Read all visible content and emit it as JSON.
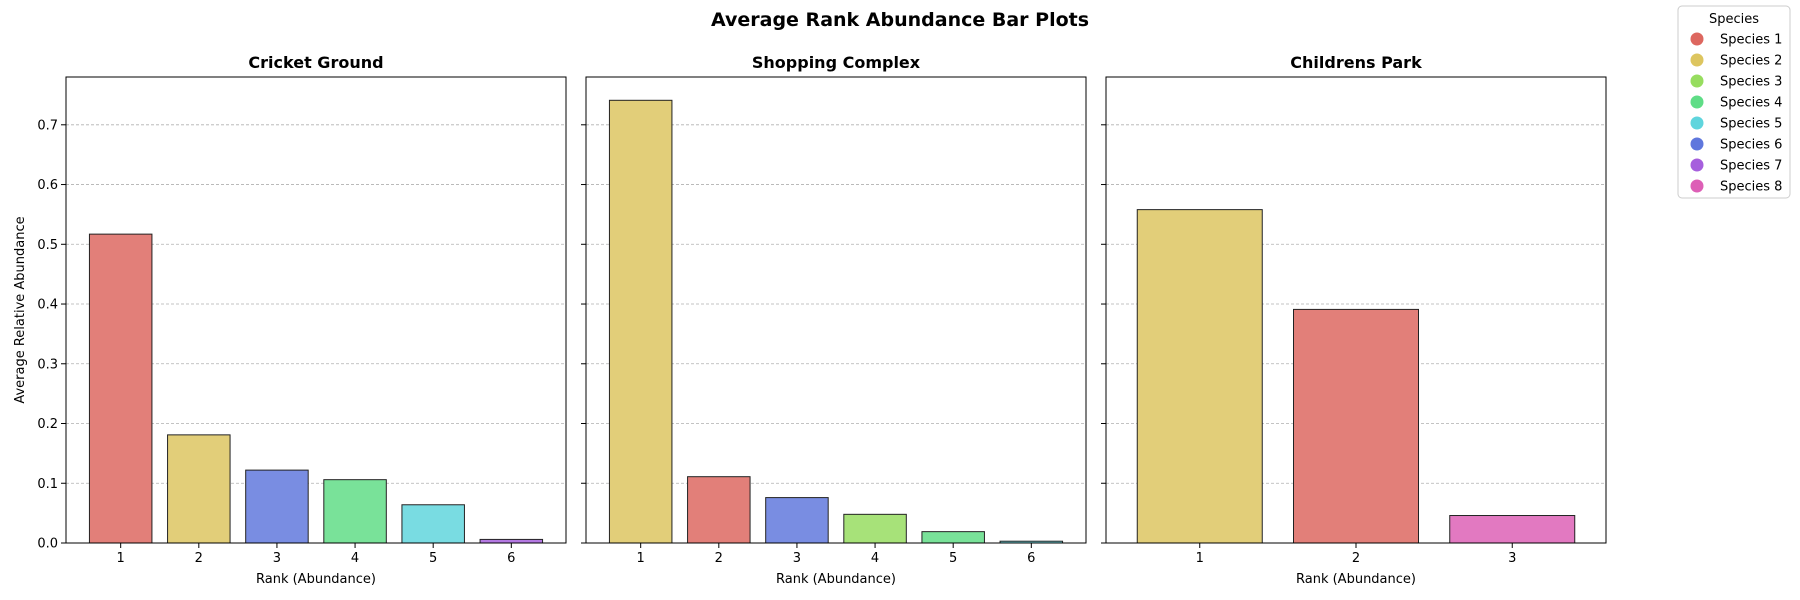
{
  "figure_title": "Average Rank Abundance Bar Plots",
  "legend": {
    "title": "Species",
    "placement": "upper-right-outside",
    "entries": [
      {
        "label": "Species 1",
        "color": "#db5f57"
      },
      {
        "label": "Species 2",
        "color": "#dbc257"
      },
      {
        "label": "Species 3",
        "color": "#91db57"
      },
      {
        "label": "Species 4",
        "color": "#57db80"
      },
      {
        "label": "Species 5",
        "color": "#57d3db"
      },
      {
        "label": "Species 6",
        "color": "#5770db"
      },
      {
        "label": "Species 7",
        "color": "#a157db"
      },
      {
        "label": "Species 8",
        "color": "#db57b2"
      }
    ]
  },
  "chart_data": [
    {
      "type": "bar",
      "title": "Cricket Ground",
      "xlabel": "Rank (Abundance)",
      "ylabel": "Average Relative Abundance",
      "categories": [
        "1",
        "2",
        "3",
        "4",
        "5",
        "6"
      ],
      "values": [
        0.517,
        0.181,
        0.122,
        0.106,
        0.064,
        0.006
      ],
      "species": [
        "Species 1",
        "Species 2",
        "Species 6",
        "Species 4",
        "Species 5",
        "Species 7"
      ],
      "ylim": [
        0,
        0.78
      ],
      "yticks": [
        "0.0",
        "0.1",
        "0.2",
        "0.3",
        "0.4",
        "0.5",
        "0.6",
        "0.7"
      ],
      "grid": "y-dashed"
    },
    {
      "type": "bar",
      "title": "Shopping Complex",
      "xlabel": "Rank (Abundance)",
      "ylabel": "",
      "categories": [
        "1",
        "2",
        "3",
        "4",
        "5",
        "6"
      ],
      "values": [
        0.741,
        0.111,
        0.076,
        0.048,
        0.019,
        0.003
      ],
      "species": [
        "Species 2",
        "Species 1",
        "Species 6",
        "Species 3",
        "Species 4",
        "Species 5"
      ],
      "ylim": [
        0,
        0.78
      ],
      "yticks": [],
      "grid": "y-dashed"
    },
    {
      "type": "bar",
      "title": "Childrens Park",
      "xlabel": "Rank (Abundance)",
      "ylabel": "",
      "categories": [
        "1",
        "2",
        "3"
      ],
      "values": [
        0.558,
        0.391,
        0.046
      ],
      "species": [
        "Species 2",
        "Species 1",
        "Species 8"
      ],
      "ylim": [
        0,
        0.78
      ],
      "yticks": [],
      "grid": "y-dashed"
    }
  ]
}
